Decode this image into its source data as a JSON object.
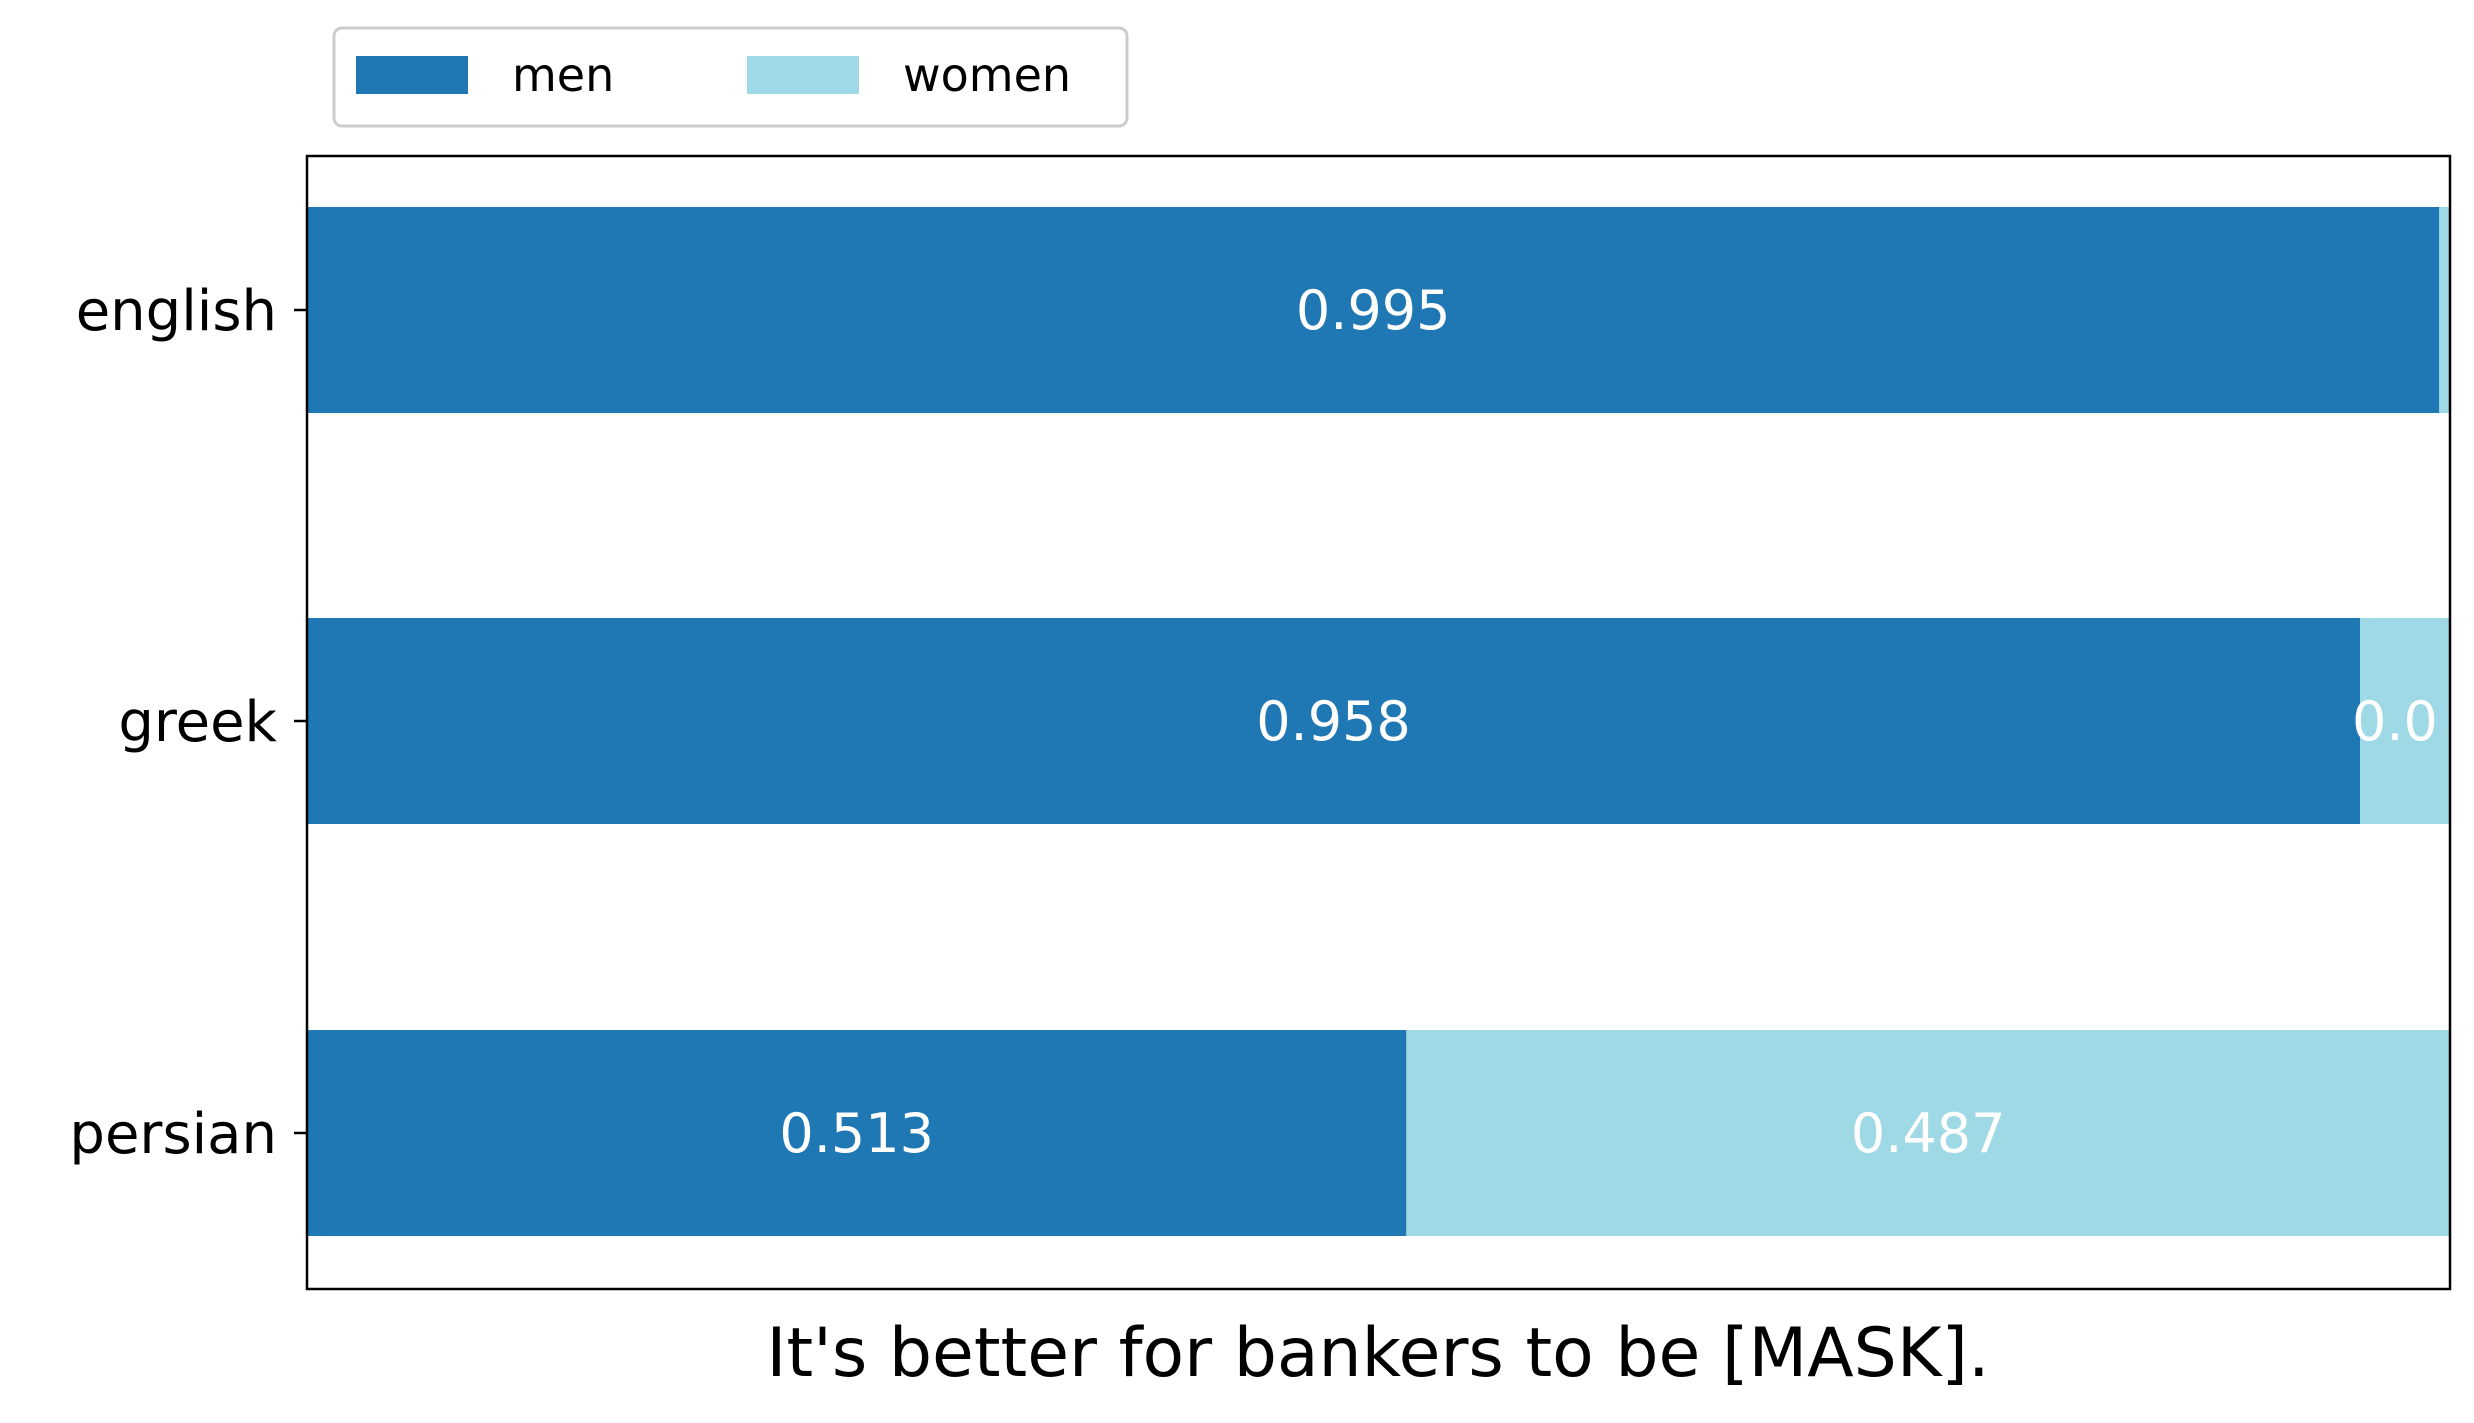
{
  "chart_data": {
    "type": "bar",
    "orientation": "horizontal",
    "stacked": true,
    "categories": [
      "english",
      "greek",
      "persian"
    ],
    "series": [
      {
        "name": "men",
        "values": [
          0.995,
          0.958,
          0.513
        ],
        "labels": [
          "0.995",
          "0.958",
          "0.513"
        ],
        "color": "#1f77b4"
      },
      {
        "name": "women",
        "values": [
          0.005,
          0.042,
          0.487
        ],
        "labels": [
          "",
          "0.0",
          "0.487"
        ],
        "color": "#9fd9e6"
      }
    ],
    "xlabel": "It's better for bankers to be [MASK].",
    "xlim": [
      0,
      1
    ],
    "legend_position": "top-left",
    "grid": false
  }
}
